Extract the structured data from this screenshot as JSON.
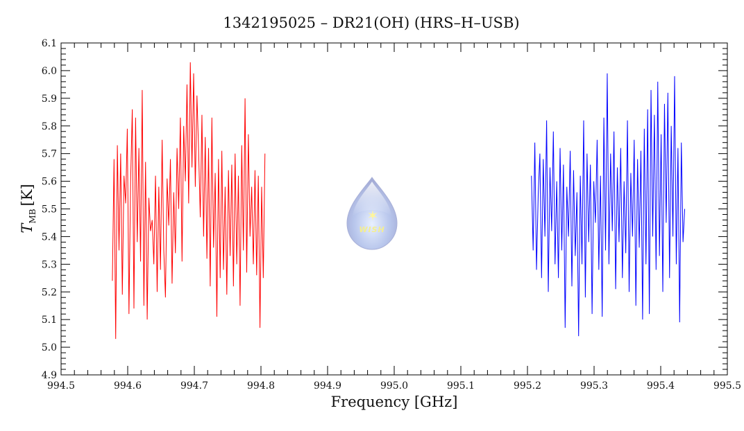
{
  "chart_data": {
    "type": "line",
    "title": "1342195025 – DR21(OH) (HRS–H–USB)",
    "xlabel": "Frequency [GHz]",
    "ylabel_main": "T",
    "ylabel_sub": "MB",
    "ylabel_unit": "[K]",
    "xlim": [
      994.5,
      995.5
    ],
    "ylim": [
      4.9,
      6.1
    ],
    "xticks": [
      "994.5",
      "994.6",
      "994.7",
      "994.8",
      "994.9",
      "995.0",
      "995.1",
      "995.2",
      "995.3",
      "995.4",
      "995.5"
    ],
    "yticks": [
      "4.9",
      "5.0",
      "5.1",
      "5.2",
      "5.3",
      "5.4",
      "5.5",
      "5.6",
      "5.7",
      "5.8",
      "5.9",
      "6.0",
      "6.1"
    ],
    "grid": false,
    "logo_text": "WISH",
    "series": [
      {
        "name": "red",
        "color": "#ff0000",
        "x_start": 994.577,
        "x_end": 994.806,
        "values": [
          5.24,
          5.68,
          5.03,
          5.73,
          5.35,
          5.7,
          5.19,
          5.62,
          5.52,
          5.79,
          5.12,
          5.6,
          5.86,
          5.14,
          5.83,
          5.38,
          5.72,
          5.31,
          5.93,
          5.15,
          5.67,
          5.1,
          5.54,
          5.42,
          5.46,
          5.3,
          5.62,
          5.2,
          5.58,
          5.28,
          5.75,
          5.35,
          5.18,
          5.61,
          5.44,
          5.68,
          5.23,
          5.56,
          5.34,
          5.72,
          5.5,
          5.83,
          5.31,
          5.8,
          5.6,
          5.95,
          5.52,
          6.03,
          5.65,
          5.99,
          5.58,
          5.91,
          5.71,
          5.47,
          5.84,
          5.4,
          5.76,
          5.32,
          5.72,
          5.22,
          5.83,
          5.36,
          5.63,
          5.11,
          5.68,
          5.25,
          5.71,
          5.28,
          5.58,
          5.19,
          5.64,
          5.33,
          5.66,
          5.22,
          5.7,
          5.3,
          5.62,
          5.15,
          5.73,
          5.35,
          5.9,
          5.27,
          5.77,
          5.4,
          5.58,
          5.3,
          5.64,
          5.26,
          5.62,
          5.07,
          5.58,
          5.25,
          5.7
        ]
      },
      {
        "name": "blue",
        "color": "#0000ff",
        "x_start": 995.206,
        "x_end": 995.436,
        "values": [
          5.62,
          5.35,
          5.74,
          5.28,
          5.55,
          5.7,
          5.25,
          5.68,
          5.4,
          5.82,
          5.2,
          5.65,
          5.42,
          5.78,
          5.3,
          5.6,
          5.25,
          5.72,
          5.35,
          5.66,
          5.07,
          5.58,
          5.4,
          5.71,
          5.22,
          5.64,
          5.33,
          5.56,
          5.04,
          5.62,
          5.3,
          5.82,
          5.18,
          5.7,
          5.38,
          5.66,
          5.12,
          5.6,
          5.45,
          5.75,
          5.28,
          5.62,
          5.11,
          5.83,
          5.35,
          5.99,
          5.3,
          5.7,
          5.42,
          5.78,
          5.21,
          5.65,
          5.38,
          5.72,
          5.25,
          5.6,
          5.34,
          5.82,
          5.2,
          5.63,
          5.4,
          5.75,
          5.15,
          5.68,
          5.36,
          5.71,
          5.1,
          5.79,
          5.3,
          5.86,
          5.12,
          5.93,
          5.4,
          5.84,
          5.28,
          5.96,
          5.33,
          5.77,
          5.2,
          5.88,
          5.45,
          5.92,
          5.25,
          5.8,
          5.4,
          5.98,
          5.3,
          5.72,
          5.09,
          5.74,
          5.38,
          5.5
        ]
      }
    ]
  }
}
